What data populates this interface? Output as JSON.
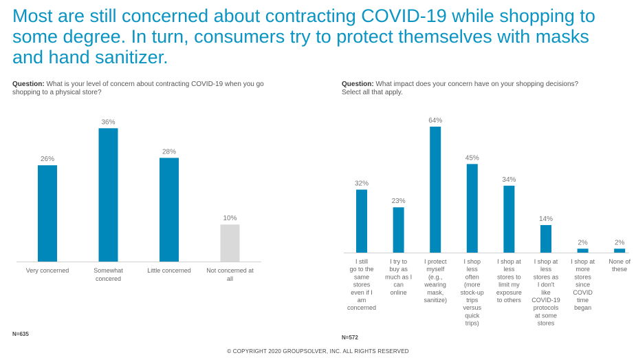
{
  "title": "Most are still concerned about contracting COVID-19 while shopping to some degree. In turn, consumers try to protect themselves with masks and hand sanitizer.",
  "left": {
    "question_label": "Question:",
    "question_text": "What is your level of concern about contracting COVID-19 when you go shopping to a physical store?",
    "n_label": "N=635"
  },
  "right": {
    "question_label": "Question:",
    "question_text": "What impact does your concern have on your shopping decisions? Select all that apply.",
    "n_label": "N=572"
  },
  "copyright": "© COPYRIGHT 2020 GROUPSOLVER, INC. ALL RIGHTS RESERVED",
  "colors": {
    "primary_bar": "#0088bb",
    "muted_bar": "#d9d9d9",
    "title": "#0a94c3"
  },
  "chart_data": [
    {
      "type": "bar",
      "categories": [
        "Very concerned",
        "Somewhat concered",
        "Little concerned",
        "Not concerned at all"
      ],
      "values": [
        26,
        36,
        28,
        10
      ],
      "value_labels": [
        "26%",
        "36%",
        "28%",
        "10%"
      ],
      "bar_colors": [
        "#0088bb",
        "#0088bb",
        "#0088bb",
        "#d9d9d9"
      ],
      "ylim": [
        0,
        40
      ],
      "grid": false,
      "legend": "none"
    },
    {
      "type": "bar",
      "categories": [
        "I still go to the same stores even if I am concerned",
        "I try to buy as much as I can online",
        "I protect myself (e.g., wearing mask, sanitize)",
        "I shop less often (more stock-up trips versus quick trips)",
        "I shop at less stores to limit my exposure to others",
        "I shop at less stores as I don't like COVID-19 protocols at some stores",
        "I shop at more stores since COVID time began",
        "None of these"
      ],
      "values": [
        32,
        23,
        64,
        45,
        34,
        14,
        2,
        2
      ],
      "value_labels": [
        "32%",
        "23%",
        "64%",
        "45%",
        "34%",
        "14%",
        "2%",
        "2%"
      ],
      "bar_colors": [
        "#0088bb",
        "#0088bb",
        "#0088bb",
        "#0088bb",
        "#0088bb",
        "#0088bb",
        "#0088bb",
        "#0088bb"
      ],
      "ylim": [
        0,
        70
      ],
      "grid": false,
      "legend": "none"
    }
  ]
}
